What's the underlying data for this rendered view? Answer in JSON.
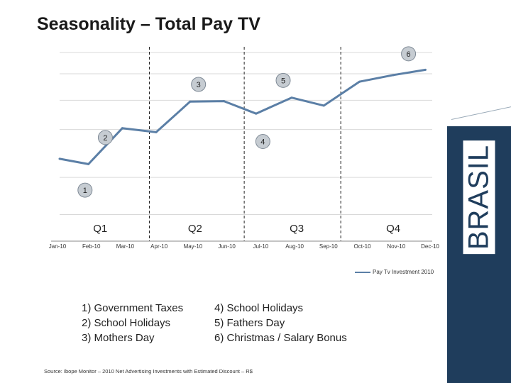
{
  "page": {
    "title": "Seasonality – Total Pay TV",
    "brand": "BRASIL",
    "notes_left": [
      "1) Government Taxes",
      "2) School Holidays",
      "3) Mothers Day"
    ],
    "notes_right": [
      "4) School Holidays",
      "5) Fathers Day",
      "6) Christmas / Salary Bonus"
    ],
    "source": "Source: Ibope Monitor – 2010 Net Advertising Investments with Estimated Discount – R$"
  },
  "colors": {
    "line": "#5b7fa6",
    "callout_fill": "#c6ccd2",
    "sidebar": "#1f3d5c"
  },
  "chart_data": {
    "type": "line",
    "categories": [
      "Jan-10",
      "Feb-10",
      "Mar-10",
      "Apr-10",
      "May-10",
      "Jun-10",
      "Jul-10",
      "Aug-10",
      "Sep-10",
      "Oct-10",
      "Nov-10",
      "Dec-10"
    ],
    "series": [
      {
        "name": "Pay Tv Investment 2010",
        "x": [
          0,
          0.85,
          1.85,
          2.85,
          3.85,
          4.85,
          5.8,
          6.85,
          7.8,
          8.85,
          9.85,
          10.8
        ],
        "values": [
          3.1,
          2.9,
          4.25,
          4.1,
          5.25,
          5.27,
          4.8,
          5.4,
          5.1,
          6.0,
          6.25,
          6.45
        ]
      }
    ],
    "ylim": [
      0,
      7.1
    ],
    "yticks": [
      1.0,
      2.4,
      4.2,
      5.3,
      6.3,
      7.1
    ],
    "quarters": [
      {
        "label": "Q1",
        "center": 1.2
      },
      {
        "label": "Q2",
        "center": 4.0
      },
      {
        "label": "Q3",
        "center": 7.0
      },
      {
        "label": "Q4",
        "center": 9.85
      }
    ],
    "quarter_dividers": [
      2.65,
      5.45,
      8.3
    ],
    "annotations": [
      {
        "label": "1",
        "x": 0.75,
        "y": 1.92
      },
      {
        "label": "2",
        "x": 1.35,
        "y": 3.9
      },
      {
        "label": "3",
        "x": 4.1,
        "y": 5.9
      },
      {
        "label": "4",
        "x": 6.0,
        "y": 3.75
      },
      {
        "label": "5",
        "x": 6.6,
        "y": 6.05
      },
      {
        "label": "6",
        "x": 10.3,
        "y": 7.05
      }
    ],
    "legend": "Pay Tv Investment 2010",
    "legend_position": "bottom-right"
  }
}
